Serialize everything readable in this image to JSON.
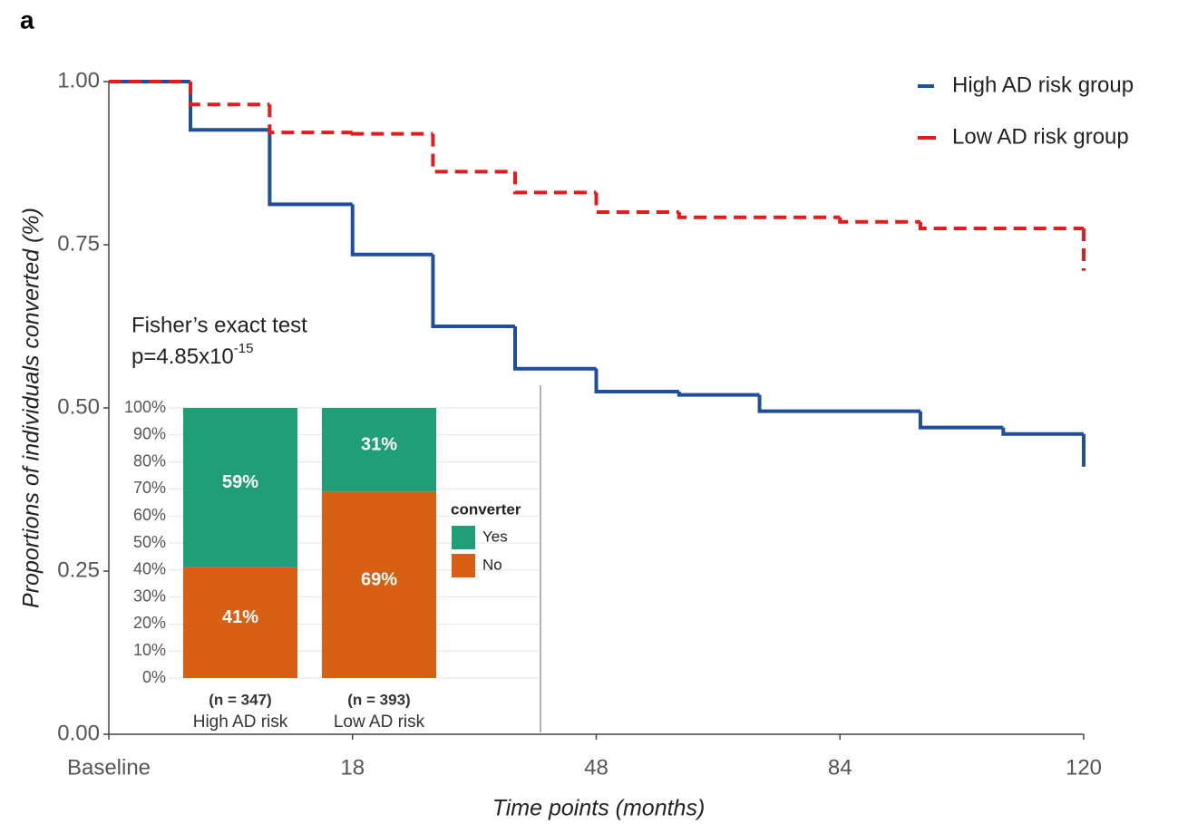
{
  "chart_data": [
    {
      "type": "line",
      "step": true,
      "panel_label": "a",
      "ylabel": "Proportions of individuals converted (%)",
      "xlabel": "Time points (months)",
      "xlim": [
        0,
        4
      ],
      "xticks": [
        {
          "value": 0,
          "label": "Baseline"
        },
        {
          "value": 1,
          "label": "18"
        },
        {
          "value": 2,
          "label": "48"
        },
        {
          "value": 3,
          "label": "84"
        },
        {
          "value": 4,
          "label": "120"
        }
      ],
      "ylim": [
        0,
        1
      ],
      "yticks": [
        {
          "value": 0,
          "label": "0.00"
        },
        {
          "value": 0.25,
          "label": "0.25"
        },
        {
          "value": 0.5,
          "label": "0.50"
        },
        {
          "value": 0.75,
          "label": "0.75"
        },
        {
          "value": 1,
          "label": "1.00"
        }
      ],
      "legend": "top-right",
      "series": [
        {
          "name": "High AD risk group",
          "color": "#1f4e9c",
          "dashed": false,
          "x": [
            0,
            0.335,
            0.66,
            1.0,
            1.33,
            1.667,
            2.0,
            2.34,
            2.67,
            3.33,
            3.67,
            4.0
          ],
          "values": [
            1.0,
            0.926,
            0.812,
            0.735,
            0.625,
            0.56,
            0.525,
            0.52,
            0.495,
            0.47,
            0.46,
            0.41
          ]
        },
        {
          "name": "Low AD risk group",
          "color": "#e41a1c",
          "dashed": true,
          "x": [
            0,
            0.335,
            0.66,
            1.0,
            1.33,
            1.667,
            2.0,
            2.34,
            3.0,
            3.33,
            4.0
          ],
          "values": [
            1.0,
            0.965,
            0.922,
            0.92,
            0.862,
            0.83,
            0.8,
            0.792,
            0.785,
            0.775,
            0.71
          ]
        }
      ],
      "annotation": "Fisher’s exact test",
      "p_value": {
        "text": "p=4.85x10",
        "superscript": "-15"
      }
    },
    {
      "type": "stacked-bar",
      "categories": [
        "High AD risk",
        "Low AD risk"
      ],
      "category_counts": [
        "(n = 347)",
        "(n = 393)"
      ],
      "ylim": [
        0,
        100
      ],
      "yticks": [
        {
          "value": 0,
          "label": "0%"
        },
        {
          "value": 10,
          "label": "10%"
        },
        {
          "value": 20,
          "label": "20%"
        },
        {
          "value": 30,
          "label": "30%"
        },
        {
          "value": 40,
          "label": "40%"
        },
        {
          "value": 50,
          "label": "50%"
        },
        {
          "value": 60,
          "label": "60%"
        },
        {
          "value": 70,
          "label": "70%"
        },
        {
          "value": 80,
          "label": "80%"
        },
        {
          "value": 90,
          "label": "90%"
        },
        {
          "value": 100,
          "label": "100%"
        }
      ],
      "grid": true,
      "legend_title": "converter",
      "series": [
        {
          "name": "No",
          "color": "#d95f15",
          "values": [
            41,
            69
          ],
          "value_labels": [
            "41%",
            "69%"
          ]
        },
        {
          "name": "Yes",
          "color": "#1f9e78",
          "values": [
            59,
            31
          ],
          "value_labels": [
            "59%",
            "31%"
          ]
        }
      ]
    }
  ]
}
